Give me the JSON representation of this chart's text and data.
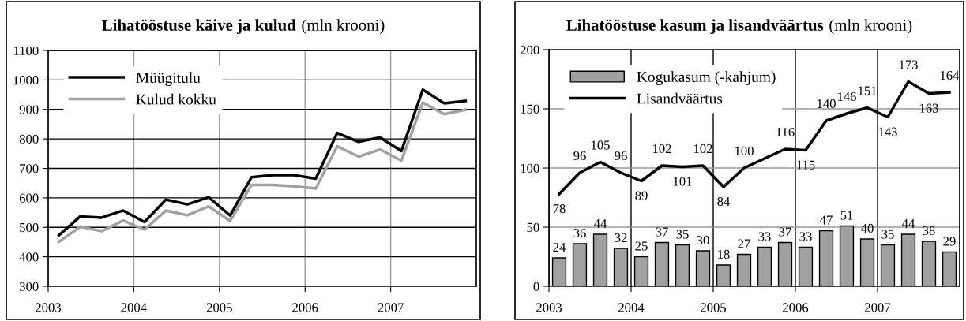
{
  "chart_data": [
    {
      "type": "line",
      "title": "Lihatööstuse käive ja kulud",
      "subtitle": "(mln krooni)",
      "x": [
        2003.125,
        2003.375,
        2003.625,
        2003.875,
        2004.125,
        2004.375,
        2004.625,
        2004.875,
        2005.125,
        2005.375,
        2005.625,
        2005.875,
        2006.125,
        2006.375,
        2006.625,
        2006.875,
        2007.125,
        2007.375,
        2007.625,
        2007.875
      ],
      "series": [
        {
          "name": "Müügitulu",
          "color": "#000000",
          "values": [
            473,
            537,
            533,
            557,
            518,
            594,
            578,
            602,
            540,
            670,
            677,
            677,
            665,
            820,
            790,
            805,
            759,
            967,
            921,
            929
          ]
        },
        {
          "name": "Kulud kokku",
          "color": "#a0a0a0",
          "values": [
            451,
            502,
            487,
            523,
            492,
            557,
            541,
            571,
            522,
            644,
            644,
            639,
            632,
            775,
            740,
            764,
            726,
            923,
            884,
            899
          ]
        }
      ],
      "xlim": [
        2003,
        2008
      ],
      "xticks": [
        2003,
        2004,
        2005,
        2006,
        2007
      ],
      "ylim": [
        300,
        1100
      ],
      "yticks": [
        300,
        400,
        500,
        600,
        700,
        800,
        900,
        1000,
        1100
      ],
      "grid": true,
      "legend": "top left",
      "marker": "none",
      "line_style": "solid"
    },
    {
      "type": "bar",
      "title": "Lihatööstuse kasum ja lisandväärtus",
      "subtitle": "(mln krooni)",
      "x": [
        2003.125,
        2003.375,
        2003.625,
        2003.875,
        2004.125,
        2004.375,
        2004.625,
        2004.875,
        2005.125,
        2005.375,
        2005.625,
        2005.875,
        2006.125,
        2006.375,
        2006.625,
        2006.875,
        2007.125,
        2007.375,
        2007.625,
        2007.875
      ],
      "series": [
        {
          "name": "Kogukasum (-kahjum)",
          "color": "#a0a0a0",
          "values": [
            24,
            36,
            44,
            32,
            25,
            37,
            35,
            30,
            18,
            27,
            33,
            37,
            33,
            47,
            51,
            40,
            35,
            44,
            38,
            29
          ],
          "value_labels": [
            "24",
            "36",
            "44",
            "32",
            "25",
            "37",
            "35",
            "30",
            "18",
            "27",
            "33",
            "37",
            "33",
            "47",
            "51",
            "40",
            "35",
            "44",
            "38",
            "29"
          ]
        },
        {
          "name": "Lisandväärtus",
          "type": "line",
          "color": "#000000",
          "values": [
            78,
            96,
            105,
            96,
            89,
            102,
            101,
            102,
            84,
            100,
            108,
            116,
            115,
            140,
            146,
            151,
            143,
            173,
            163,
            164
          ],
          "value_labels": [
            "78",
            "96",
            "105",
            "96",
            "89",
            "102",
            "101",
            "102",
            "84",
            "100",
            null,
            "116",
            "115",
            "140",
            "146",
            "151",
            "143",
            "173",
            "163",
            "164"
          ]
        }
      ],
      "xlim": [
        2003,
        2008
      ],
      "xticks": [
        2003,
        2004,
        2005,
        2006,
        2007
      ],
      "ylim": [
        0,
        200
      ],
      "yticks": [
        0,
        50,
        100,
        150,
        200
      ],
      "grid": true,
      "legend": "top left"
    }
  ]
}
